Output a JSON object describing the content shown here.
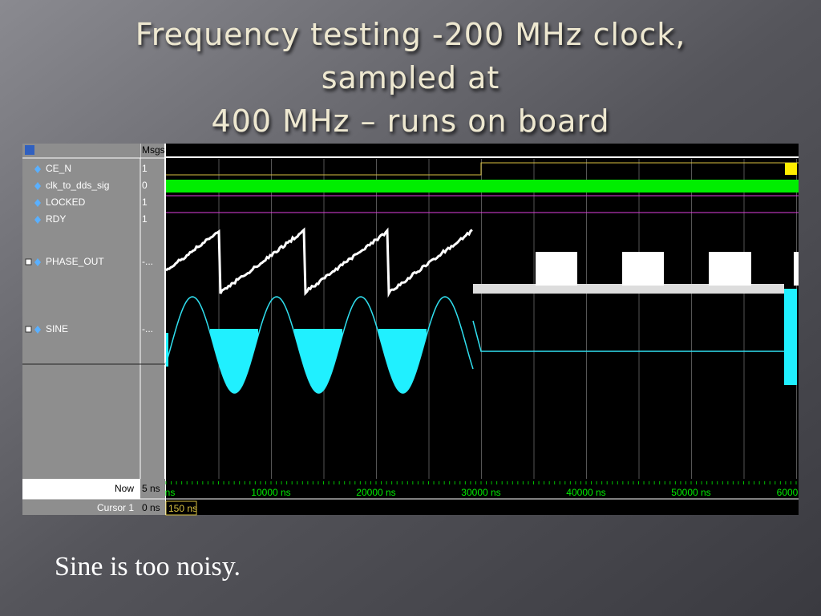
{
  "slide": {
    "title_lines": [
      "Frequency testing -200 MHz clock,",
      "sampled at",
      "400 MHz – runs on board"
    ],
    "caption": "Sine is too noisy."
  },
  "waveform": {
    "msgs_header": "Msgs",
    "signals": [
      {
        "name": "CE_N",
        "value": "1"
      },
      {
        "name": "clk_to_dds_sig",
        "value": "0"
      },
      {
        "name": "LOCKED",
        "value": "1"
      },
      {
        "name": "RDY",
        "value": "1"
      },
      {
        "name": "PHASE_OUT",
        "value": "-..."
      },
      {
        "name": "SINE",
        "value": "-..."
      }
    ],
    "time_labels": [
      "ns",
      "10000 ns",
      "20000 ns",
      "30000 ns",
      "40000 ns",
      "50000 ns",
      "6000"
    ],
    "now_label": "Now",
    "now_value": "5 ns",
    "cursor_label": "Cursor 1",
    "cursor_value": "0 ns",
    "cursor_time": "150 ns"
  }
}
